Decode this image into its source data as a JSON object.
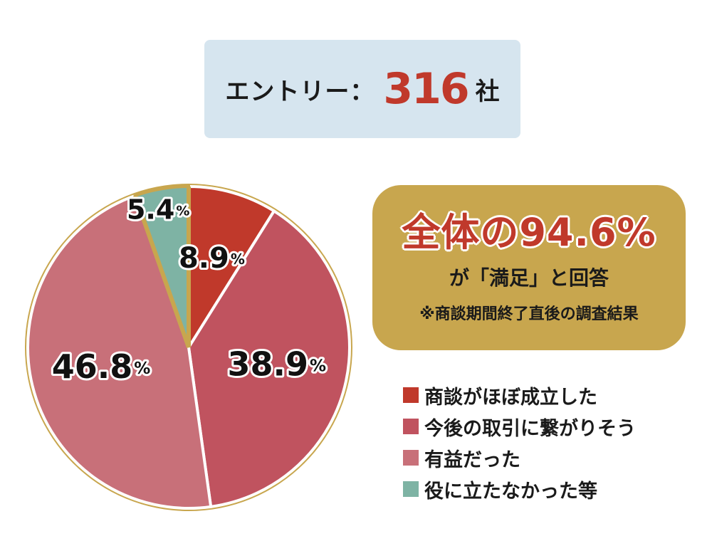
{
  "entry": {
    "label": "エントリー：",
    "count": "316",
    "unit": "社"
  },
  "summary": {
    "main": "全体の94.6%",
    "sub": "が「満足」と回答",
    "note": "※商談期間終了直後の調査結果"
  },
  "colors": {
    "accent_red": "#c0392b",
    "pie_border": "#c8a64e",
    "entry_bg": "#d6e5ef",
    "summary_bg": "#c8a64e"
  },
  "chart_data": {
    "type": "pie",
    "title": "",
    "slices": [
      {
        "label": "商談がほぼ成立した",
        "value": 8.9,
        "display": "8.9",
        "color": "#c0392b"
      },
      {
        "label": "今後の取引に繋がりそう",
        "value": 38.9,
        "display": "38.9",
        "color": "#c0535f"
      },
      {
        "label": "有益だった",
        "value": 46.8,
        "display": "46.8",
        "color": "#c87079"
      },
      {
        "label": "役に立たなかった等",
        "value": 5.4,
        "display": "5.4",
        "color": "#7eb3a4"
      }
    ],
    "unit": "%",
    "start": "top",
    "direction": "clockwise",
    "legend_position": "right"
  }
}
